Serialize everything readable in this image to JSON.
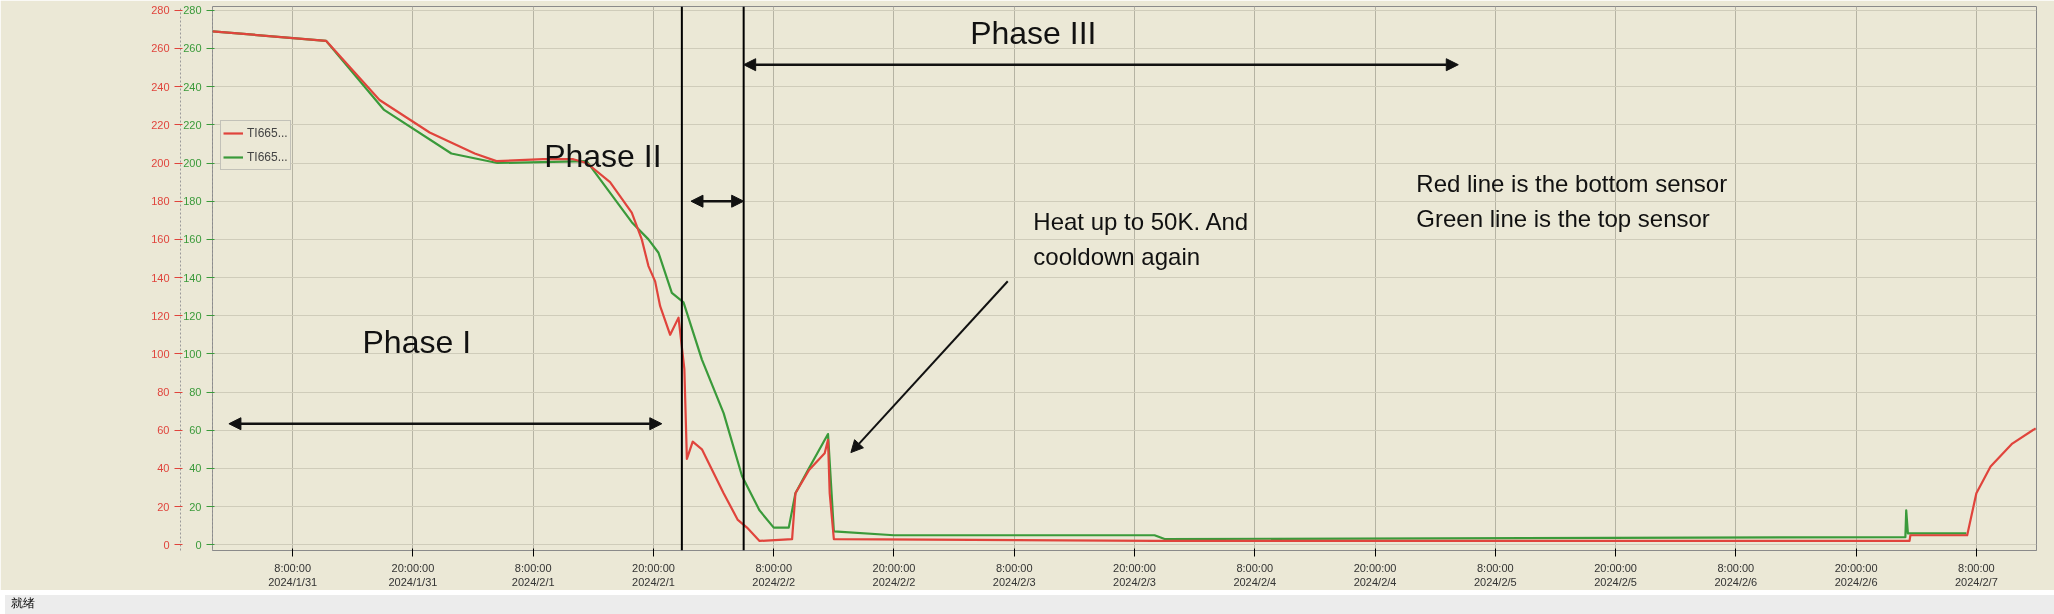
{
  "chart_data": {
    "type": "line",
    "xlim": [
      "2024-01-31T00:00",
      "2024-02-07T14:00"
    ],
    "xticks": [
      {
        "value": "2024-01-31T08:00",
        "label": "8:00:00\n2024/1/31"
      },
      {
        "value": "2024-01-31T20:00",
        "label": "20:00:00\n2024/1/31"
      },
      {
        "value": "2024-02-01T08:00",
        "label": "8:00:00\n2024/2/1"
      },
      {
        "value": "2024-02-01T20:00",
        "label": "20:00:00\n2024/2/1"
      },
      {
        "value": "2024-02-02T08:00",
        "label": "8:00:00\n2024/2/2"
      },
      {
        "value": "2024-02-02T20:00",
        "label": "20:00:00\n2024/2/2"
      },
      {
        "value": "2024-02-03T08:00",
        "label": "8:00:00\n2024/2/3"
      },
      {
        "value": "2024-02-03T20:00",
        "label": "20:00:00\n2024/2/3"
      },
      {
        "value": "2024-02-04T08:00",
        "label": "8:00:00\n2024/2/4"
      },
      {
        "value": "2024-02-04T20:00",
        "label": "20:00:00\n2024/2/4"
      },
      {
        "value": "2024-02-05T08:00",
        "label": "8:00:00\n2024/2/5"
      },
      {
        "value": "2024-02-05T20:00",
        "label": "20:00:00\n2024/2/5"
      },
      {
        "value": "2024-02-06T08:00",
        "label": "8:00:00\n2024/2/6"
      },
      {
        "value": "2024-02-06T20:00",
        "label": "20:00:00\n2024/2/6"
      },
      {
        "value": "2024-02-07T08:00",
        "label": "8:00:00\n2024/2/7"
      }
    ],
    "ylim": [
      -3,
      282
    ],
    "yticks": [
      0,
      20,
      40,
      60,
      80,
      100,
      120,
      140,
      160,
      180,
      200,
      220,
      240,
      260,
      280
    ],
    "y2lim": [
      -3,
      282
    ],
    "y2ticks": [
      0,
      20,
      40,
      60,
      80,
      100,
      120,
      140,
      160,
      180,
      200,
      220,
      240,
      260,
      280
    ],
    "grid": true,
    "legend": "top left",
    "marker": "none",
    "line_style": "solid",
    "series": [
      {
        "name": "TI665...",
        "color": "#e0443c",
        "x": [
          "2024-01-31T00:00",
          "2024-01-31T11:20",
          "2024-01-31T16:40",
          "2024-01-31T21:40",
          "2024-02-01T02:10",
          "2024-02-01T04:20",
          "2024-02-01T09:00",
          "2024-02-01T12:00",
          "2024-02-01T13:20",
          "2024-02-01T15:40",
          "2024-02-01T17:50",
          "2024-02-01T18:50",
          "2024-02-01T19:30",
          "2024-02-01T20:10",
          "2024-02-01T20:40",
          "2024-02-01T21:40",
          "2024-02-01T22:30",
          "2024-02-01T23:05",
          "2024-02-01T23:20",
          "2024-02-01T23:55",
          "2024-02-02T00:50",
          "2024-02-02T03:00",
          "2024-02-02T04:25",
          "2024-02-02T05:20",
          "2024-02-02T06:35",
          "2024-02-02T09:50",
          "2024-02-02T10:10",
          "2024-02-02T11:30",
          "2024-02-02T13:05",
          "2024-02-02T13:25",
          "2024-02-02T13:35",
          "2024-02-02T14:00",
          "2024-02-03T22:00",
          "2024-02-07T01:20",
          "2024-02-07T01:25",
          "2024-02-07T07:05",
          "2024-02-07T08:00",
          "2024-02-07T09:25",
          "2024-02-07T11:35",
          "2024-02-07T13:55"
        ],
        "values": [
          269,
          264,
          233,
          216,
          205,
          201,
          202,
          202,
          200,
          190,
          174,
          160,
          146,
          138,
          125,
          110,
          119,
          92,
          45,
          54,
          50,
          27,
          13,
          9,
          2,
          3,
          27,
          39,
          48,
          55,
          27,
          3,
          2,
          2,
          5,
          5,
          27,
          41,
          53,
          61
        ]
      },
      {
        "name": "TI665...",
        "color": "#3a9a3a",
        "axis": "y2",
        "x": [
          "2024-01-31T00:00",
          "2024-01-31T11:20",
          "2024-01-31T17:05",
          "2024-01-31T23:50",
          "2024-02-01T04:25",
          "2024-02-01T13:20",
          "2024-02-01T17:50",
          "2024-02-01T19:30",
          "2024-02-01T20:30",
          "2024-02-01T21:50",
          "2024-02-01T23:00",
          "2024-02-02T00:50",
          "2024-02-02T03:00",
          "2024-02-02T04:50",
          "2024-02-02T06:35",
          "2024-02-02T08:00",
          "2024-02-02T09:30",
          "2024-02-02T10:10",
          "2024-02-02T11:30",
          "2024-02-02T13:25",
          "2024-02-02T14:00",
          "2024-02-02T20:00",
          "2024-02-03T22:00",
          "2024-02-03T23:00",
          "2024-02-07T00:55",
          "2024-02-07T01:00",
          "2024-02-07T01:10",
          "2024-02-07T07:00"
        ],
        "values": [
          269,
          264,
          228,
          205,
          200,
          201,
          169,
          160,
          153,
          132,
          127,
          97,
          69,
          36,
          18,
          9,
          9,
          27,
          40,
          58,
          7,
          5,
          5,
          3,
          4,
          18,
          6,
          6
        ]
      }
    ],
    "ref_lines": [
      {
        "axis": "x",
        "value": "2024-02-01T22:50",
        "color": "#000000"
      },
      {
        "axis": "x",
        "value": "2024-02-02T05:00",
        "color": "#000000"
      }
    ],
    "annotations": [
      "Phase I",
      {
        "text": "Phase II",
        "x": "2024-02-02T05:00",
        "y": 180
      },
      "Phase III",
      "Heat up to 50K. And\ncooldown again",
      "Red line is the bottom sensor\nGreen line is the top sensor",
      "就绪"
    ]
  }
}
